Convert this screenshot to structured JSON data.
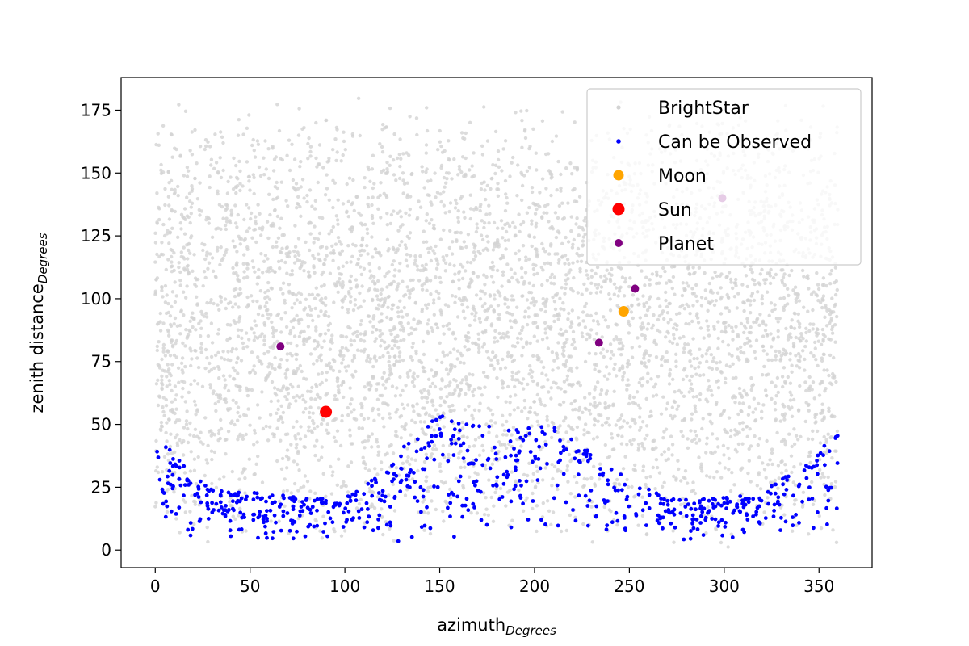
{
  "chart_data": {
    "type": "scatter",
    "title": "",
    "xlabel": "azimuth",
    "xlabel_subscript": "Degrees",
    "ylabel": "zenith distance",
    "ylabel_subscript": "Degrees",
    "xlim": [
      -18,
      378
    ],
    "ylim": [
      -7,
      188
    ],
    "xticks": [
      0,
      50,
      100,
      150,
      200,
      250,
      300,
      350
    ],
    "yticks": [
      0,
      25,
      50,
      75,
      100,
      125,
      150,
      175
    ],
    "grid": false,
    "legend_position": "top-right",
    "series": [
      {
        "name": "BrightStar",
        "color": "#d3d3d3",
        "description_of_distribution": "dense scattered field across azimuth 0-360 and zenith 0-180",
        "point_count_estimate": 5000,
        "points": "generated-field"
      },
      {
        "name": "Can be Observed",
        "color": "#0000ff",
        "point_count_estimate": 700,
        "envelope": [
          [
            0,
            48
          ],
          [
            10,
            38
          ],
          [
            20,
            30
          ],
          [
            30,
            24
          ],
          [
            50,
            23
          ],
          [
            80,
            21
          ],
          [
            100,
            22
          ],
          [
            120,
            30
          ],
          [
            135,
            45
          ],
          [
            150,
            54
          ],
          [
            170,
            50
          ],
          [
            190,
            48
          ],
          [
            210,
            53
          ],
          [
            220,
            45
          ],
          [
            240,
            34
          ],
          [
            255,
            26
          ],
          [
            270,
            21
          ],
          [
            300,
            21
          ],
          [
            320,
            23
          ],
          [
            340,
            33
          ],
          [
            360,
            47
          ]
        ],
        "points": "generated-field"
      },
      {
        "name": "Moon",
        "color": "#ffa500",
        "points": [
          [
            247,
            95
          ]
        ]
      },
      {
        "name": "Sun",
        "color": "#ff0000",
        "points": [
          [
            90,
            55
          ]
        ]
      },
      {
        "name": "Planet",
        "color": "#800080",
        "points": [
          [
            66,
            81
          ],
          [
            234,
            82.5
          ],
          [
            253,
            104
          ],
          [
            299,
            140
          ]
        ]
      }
    ],
    "legend": [
      "BrightStar",
      "Can be Observed",
      "Moon",
      "Sun",
      "Planet"
    ]
  }
}
